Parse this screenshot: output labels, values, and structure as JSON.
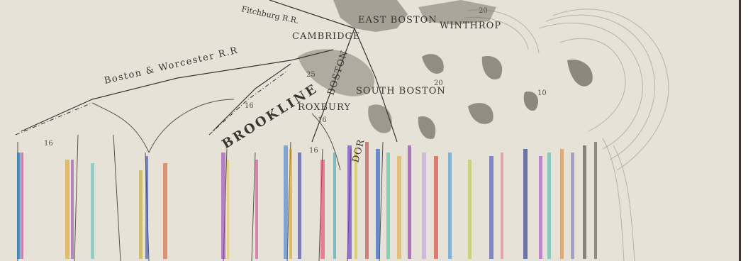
{
  "map": {
    "places": {
      "cambridge": "CAMBRIDGE",
      "east_boston": "EAST BOSTON",
      "winthrop": "WINTHROP",
      "roxbury": "ROXBURY",
      "south_boston": "SOUTH BOSTON",
      "brookline": "BROOKLINE",
      "boston": "BOSTON",
      "dorchester": "DOR"
    },
    "railroads": {
      "fitchburg": "Fitchburg R.R.",
      "worcester": "Boston & Worcester R.R"
    },
    "numbers": [
      "16",
      "16",
      "16",
      "16",
      "20",
      "20",
      "25",
      "10"
    ],
    "colors": {
      "paper": "#e4e0d6",
      "land": "#e9e6de",
      "ink": "#3a3530",
      "water_shade": "#7a746a"
    }
  }
}
